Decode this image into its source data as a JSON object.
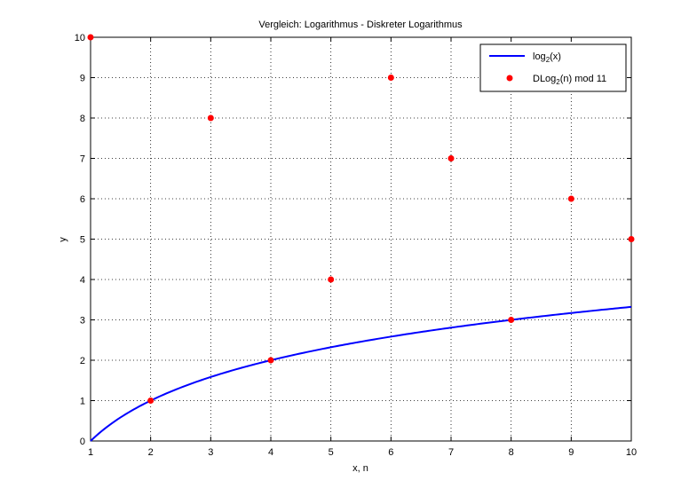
{
  "chart_data": {
    "type": "scatter",
    "title": "Vergleich: Logarithmus - Diskreter Logarithmus",
    "xlabel": "x, n",
    "ylabel": "y",
    "xlim": [
      1,
      10
    ],
    "ylim": [
      0,
      10
    ],
    "x_ticks": [
      "1",
      "2",
      "3",
      "4",
      "5",
      "6",
      "7",
      "8",
      "9",
      "10"
    ],
    "y_ticks": [
      "0",
      "1",
      "2",
      "3",
      "4",
      "5",
      "6",
      "7",
      "8",
      "9",
      "10"
    ],
    "grid": true,
    "legend_position": "top-right",
    "series": [
      {
        "legend_base": "log",
        "legend_sub": "2",
        "legend_tail": "(x)",
        "kind": "line",
        "function": "log2",
        "color": "#0000ff",
        "x_range": [
          1,
          10
        ]
      },
      {
        "legend_base": "DLog",
        "legend_sub": "2",
        "legend_tail": "(n) mod 11",
        "kind": "scatter",
        "color": "#ff0000",
        "points": [
          {
            "x": 1,
            "y": 10
          },
          {
            "x": 2,
            "y": 1
          },
          {
            "x": 3,
            "y": 8
          },
          {
            "x": 4,
            "y": 2
          },
          {
            "x": 5,
            "y": 4
          },
          {
            "x": 6,
            "y": 9
          },
          {
            "x": 7,
            "y": 7
          },
          {
            "x": 8,
            "y": 3
          },
          {
            "x": 9,
            "y": 6
          },
          {
            "x": 10,
            "y": 5
          }
        ]
      }
    ]
  }
}
